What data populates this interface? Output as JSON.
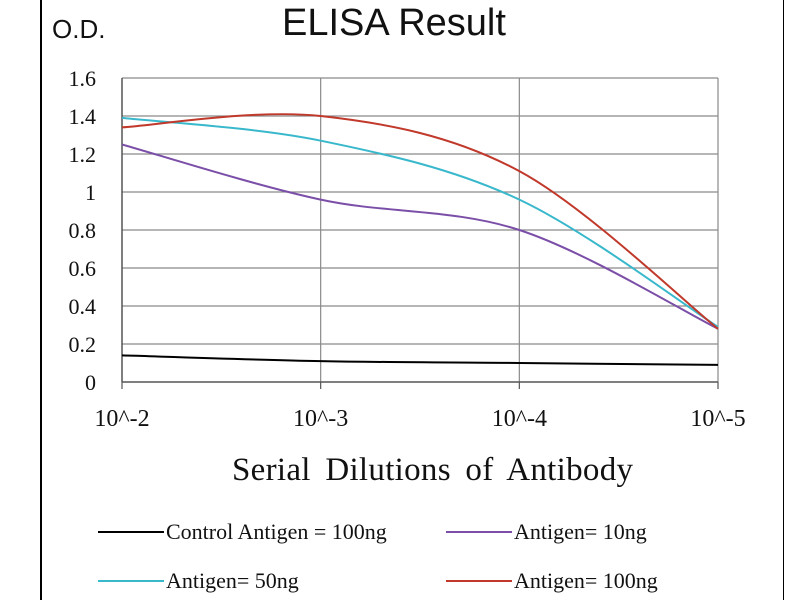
{
  "chart_data": {
    "type": "line",
    "title": "ELISA Result",
    "ylabel": "O.D.",
    "xlabel": "Serial Dilutions  of Antibody",
    "categories": [
      "10^-2",
      "10^-3",
      "10^-4",
      "10^-5"
    ],
    "ylim": [
      0,
      1.6
    ],
    "yticks": [
      "0",
      "0.2",
      "0.4",
      "0.6",
      "0.8",
      "1",
      "1.2",
      "1.4",
      "1.6"
    ],
    "grid": true,
    "legend_position": "bottom",
    "series": [
      {
        "name": "Control Antigen = 100ng",
        "color": "#000000",
        "values": [
          0.14,
          0.11,
          0.1,
          0.09
        ]
      },
      {
        "name": "Antigen= 10ng",
        "color": "#7B4FA8",
        "values": [
          1.25,
          0.96,
          0.8,
          0.28
        ]
      },
      {
        "name": "Antigen= 50ng",
        "color": "#39B8CC",
        "values": [
          1.39,
          1.27,
          0.96,
          0.29
        ]
      },
      {
        "name": "Antigen= 100ng",
        "color": "#C0392B",
        "values": [
          1.34,
          1.4,
          1.11,
          0.28
        ]
      }
    ]
  }
}
